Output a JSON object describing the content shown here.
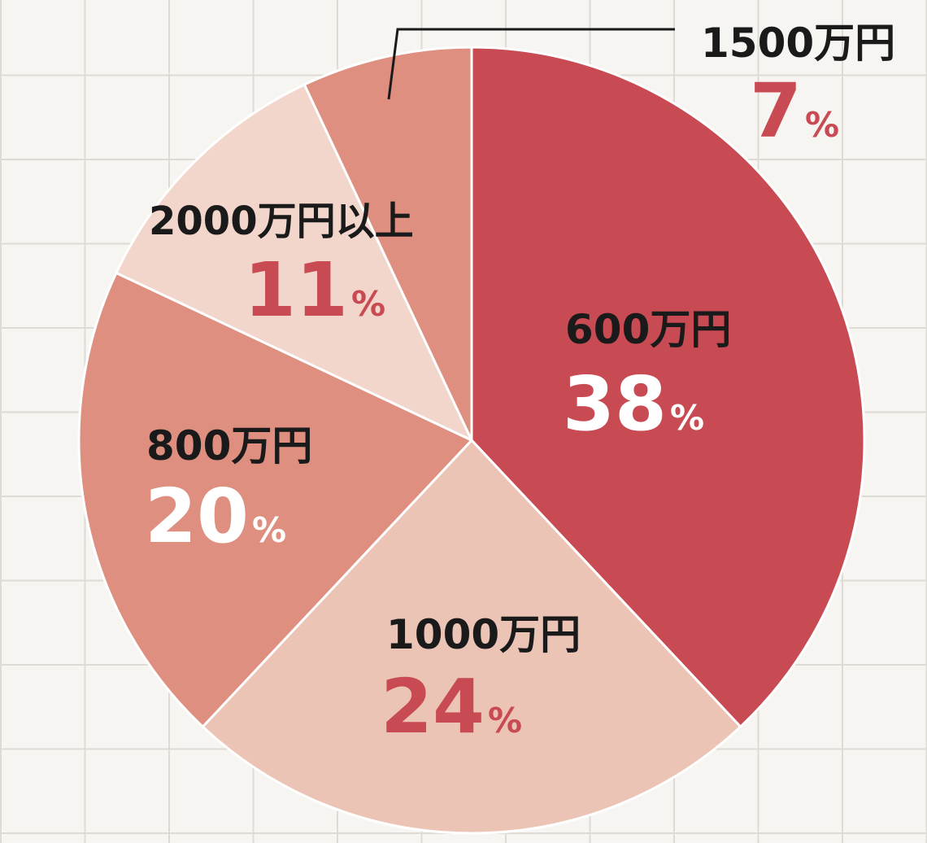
{
  "chart_data": {
    "type": "pie",
    "slices": [
      {
        "label": "600万円",
        "value": 38,
        "display": "38",
        "unit": "%",
        "color": "#c84a52",
        "label_color": "#1a1a1a",
        "value_color": "#ffffff"
      },
      {
        "label": "1000万円",
        "value": 24,
        "display": "24",
        "unit": "%",
        "color": "#ecc4b6",
        "label_color": "#1a1a1a",
        "value_color": "#c84a52"
      },
      {
        "label": "800万円",
        "value": 20,
        "display": "20",
        "unit": "%",
        "color": "#de8f80",
        "label_color": "#1a1a1a",
        "value_color": "#ffffff"
      },
      {
        "label": "2000万円以上",
        "value": 11,
        "display": "11",
        "unit": "%",
        "color": "#f2d6cb",
        "label_color": "#1a1a1a",
        "value_color": "#c84a52"
      },
      {
        "label": "1500万円",
        "value": 7,
        "display": "7",
        "unit": "%",
        "color": "#de8f80",
        "label_color": "#1a1a1a",
        "value_color": "#c84a52"
      }
    ]
  }
}
